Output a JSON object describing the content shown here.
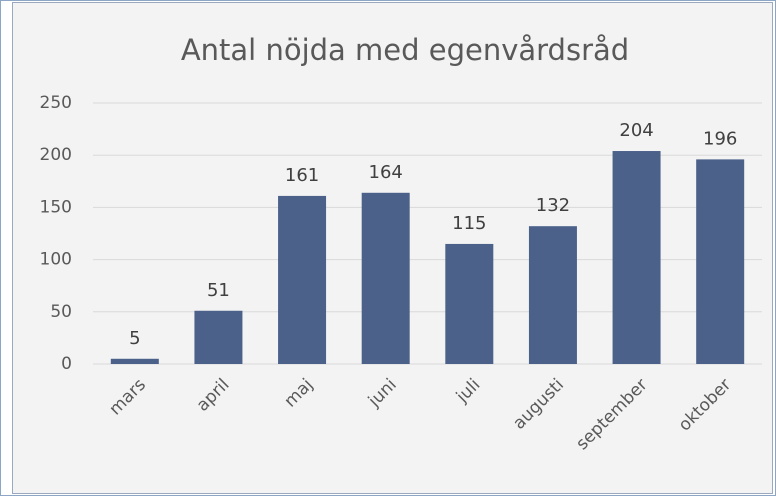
{
  "chart_data": {
    "type": "bar",
    "title": "Antal nöjda med egenvårdsråd",
    "categories": [
      "mars",
      "april",
      "maj",
      "juni",
      "juli",
      "augusti",
      "september",
      "oktober"
    ],
    "values": [
      5,
      51,
      161,
      164,
      115,
      132,
      204,
      196
    ],
    "color": "#4b6189",
    "ylim": [
      0,
      250
    ],
    "yticks": [
      0,
      50,
      100,
      150,
      200,
      250
    ],
    "grid": true
  }
}
